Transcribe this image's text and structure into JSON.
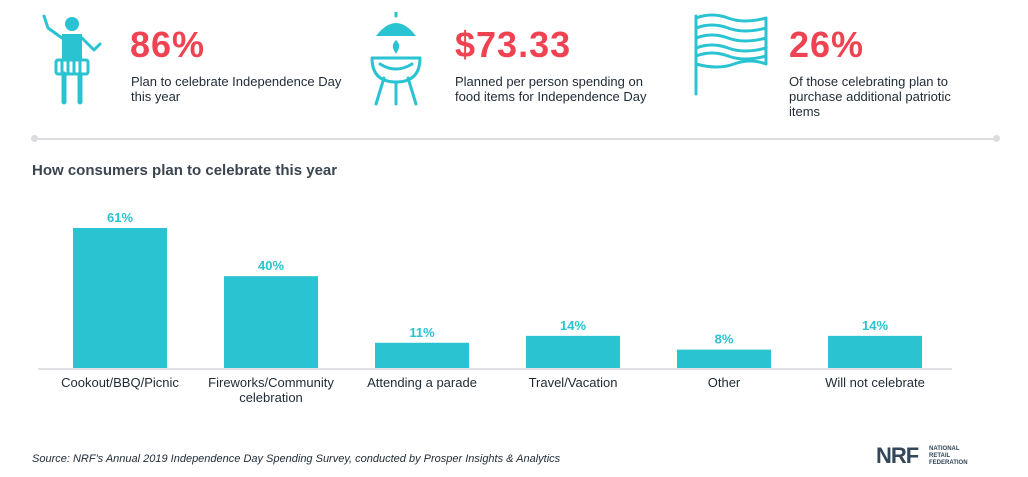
{
  "colors": {
    "accent": "#ef4352",
    "bar": "#29c3d1",
    "icon": "#29c3d1"
  },
  "stats": [
    {
      "icon": "drummer-icon",
      "value": "86%",
      "description": "Plan to celebrate Independence Day this year"
    },
    {
      "icon": "grill-icon",
      "value": "$73.33",
      "description": "Planned per person spending on food items for Independence Day"
    },
    {
      "icon": "flag-icon",
      "value": "26%",
      "description": "Of those celebrating plan to purchase additional patriotic items"
    }
  ],
  "chart_data": {
    "type": "bar",
    "title": "How consumers plan to celebrate this year",
    "categories": [
      "Cookout/BBQ/Picnic",
      "Fireworks/Community celebration",
      "Attending a parade",
      "Travel/Vacation",
      "Other",
      "Will not celebrate"
    ],
    "values": [
      61,
      40,
      11,
      14,
      8,
      14
    ],
    "labels": [
      "61%",
      "40%",
      "11%",
      "14%",
      "8%",
      "14%"
    ],
    "unit": "%",
    "ylim": [
      0,
      61
    ],
    "grid": false
  },
  "source": "Source: NRF's Annual 2019 Independence Day Spending Survey, conducted by Prosper Insights & Analytics",
  "logo": {
    "mark": "NRF",
    "line1": "NATIONAL",
    "line2": "RETAIL",
    "line3": "FEDERATION"
  }
}
